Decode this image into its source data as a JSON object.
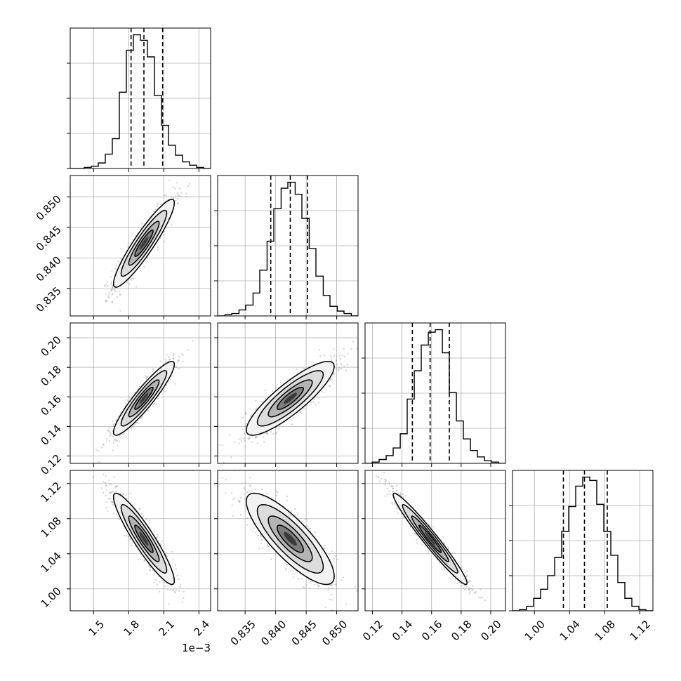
{
  "chart_data": {
    "type": "corner",
    "grid": true,
    "colors": {
      "ink": "#000000",
      "grid": "#b0b0b0",
      "scatter": "#7a7a7a"
    },
    "params": [
      {
        "ticks": [
          1.5,
          1.8,
          2.1,
          2.4
        ],
        "tick_labels": [
          "1.5",
          "1.8",
          "2.1",
          "2.4"
        ],
        "offset_text": "1e−3",
        "range": [
          1.3,
          2.5
        ],
        "quantiles": [
          1.82,
          1.93,
          2.09
        ],
        "hist_bins": [
          1.3,
          1.36,
          1.42,
          1.48,
          1.54,
          1.6,
          1.66,
          1.72,
          1.78,
          1.84,
          1.9,
          1.96,
          2.02,
          2.08,
          2.14,
          2.2,
          2.26,
          2.32,
          2.38,
          2.44,
          2.5
        ],
        "hist_counts": [
          0,
          0,
          1,
          2,
          5,
          13,
          27,
          69,
          107,
          121,
          116,
          101,
          66,
          39,
          21,
          12,
          6,
          3,
          1,
          0
        ]
      },
      {
        "ticks": [
          0.835,
          0.84,
          0.845,
          0.85
        ],
        "tick_labels": [
          "0.835",
          "0.840",
          "0.845",
          "0.850"
        ],
        "range": [
          0.8305,
          0.8535
        ],
        "quantiles": [
          0.8392,
          0.8424,
          0.8452
        ],
        "hist_bins": [
          0.8305,
          0.8317,
          0.8328,
          0.834,
          0.8351,
          0.8363,
          0.8374,
          0.8386,
          0.8397,
          0.8409,
          0.842,
          0.8432,
          0.8443,
          0.8455,
          0.8466,
          0.8478,
          0.8489,
          0.8501,
          0.8512,
          0.8524,
          0.8535
        ],
        "hist_counts": [
          0,
          1,
          2,
          5,
          9,
          19,
          38,
          62,
          89,
          106,
          111,
          101,
          81,
          56,
          33,
          17,
          8,
          4,
          2,
          0
        ]
      },
      {
        "ticks": [
          0.12,
          0.14,
          0.16,
          0.18,
          0.2
        ],
        "tick_labels": [
          "0.12",
          "0.14",
          "0.16",
          "0.18",
          "0.20"
        ],
        "range": [
          0.115,
          0.21
        ],
        "quantiles": [
          0.147,
          0.159,
          0.172
        ],
        "hist_bins": [
          0.115,
          0.1198,
          0.1245,
          0.1293,
          0.134,
          0.1388,
          0.1435,
          0.1483,
          0.153,
          0.1578,
          0.1625,
          0.1673,
          0.172,
          0.1768,
          0.1815,
          0.1863,
          0.191,
          0.1958,
          0.2005,
          0.2053,
          0.21
        ],
        "hist_counts": [
          0,
          1,
          3,
          6,
          12,
          23,
          50,
          72,
          92,
          102,
          104,
          86,
          55,
          33,
          19,
          10,
          5,
          2,
          1,
          0
        ]
      },
      {
        "ticks": [
          1.0,
          1.04,
          1.08,
          1.12
        ],
        "tick_labels": [
          "1.00",
          "1.04",
          "1.08",
          "1.12"
        ],
        "range": [
          0.975,
          1.135
        ],
        "quantiles": [
          1.033,
          1.057,
          1.083
        ],
        "hist_bins": [
          0.975,
          0.983,
          0.991,
          0.999,
          1.007,
          1.015,
          1.023,
          1.031,
          1.039,
          1.047,
          1.055,
          1.063,
          1.071,
          1.079,
          1.087,
          1.095,
          1.103,
          1.111,
          1.119,
          1.127,
          1.135
        ],
        "hist_counts": [
          0,
          1,
          4,
          11,
          19,
          31,
          47,
          70,
          92,
          110,
          118,
          115,
          94,
          70,
          49,
          25,
          11,
          4,
          1,
          0
        ]
      }
    ],
    "pairs": [
      {
        "x": 0,
        "y": 1,
        "center": [
          1.93,
          0.8424
        ],
        "sd": [
          0.13,
          0.0036
        ],
        "rho": 0.92
      },
      {
        "x": 0,
        "y": 2,
        "center": [
          1.93,
          0.159
        ],
        "sd": [
          0.13,
          0.0125
        ],
        "rho": 0.92
      },
      {
        "x": 1,
        "y": 2,
        "center": [
          0.8424,
          0.159
        ],
        "sd": [
          0.0036,
          0.0125
        ],
        "rho": 0.86
      },
      {
        "x": 0,
        "y": 3,
        "center": [
          1.93,
          1.057
        ],
        "sd": [
          0.13,
          0.026
        ],
        "rho": -0.92
      },
      {
        "x": 1,
        "y": 3,
        "center": [
          0.8424,
          1.057
        ],
        "sd": [
          0.0036,
          0.026
        ],
        "rho": -0.82
      },
      {
        "x": 2,
        "y": 3,
        "center": [
          0.159,
          1.057
        ],
        "sd": [
          0.0125,
          0.026
        ],
        "rho": -0.97
      }
    ]
  }
}
